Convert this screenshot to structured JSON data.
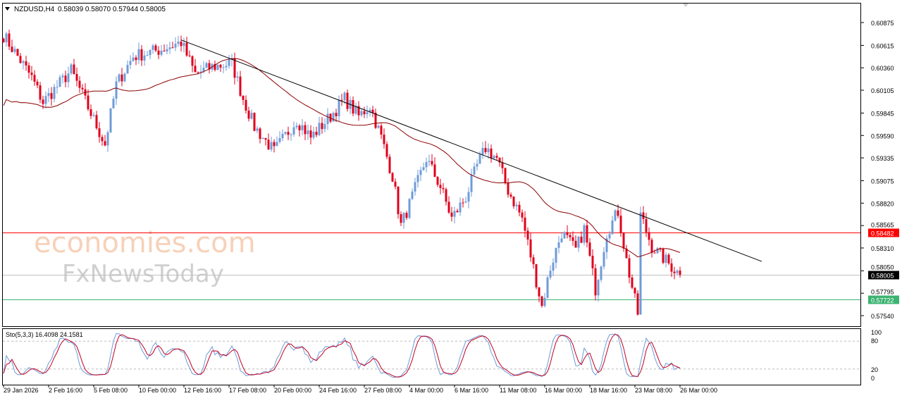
{
  "header": {
    "symbol": "NZDUSD,H4",
    "ohlc": "0.58039 0.58070 0.57944 0.58005"
  },
  "watermark": {
    "line1": "economies.com",
    "line2": "FxNewsToday"
  },
  "chart_data": {
    "type": "candlestick",
    "symbol": "NZDUSD",
    "timeframe": "H4",
    "ylim": [
      0.5754,
      0.60875
    ],
    "y_ticks": [
      "0.60875",
      "0.60615",
      "0.60360",
      "0.60105",
      "0.59845",
      "0.59590",
      "0.59335",
      "0.59075",
      "0.58820",
      "0.58565",
      "0.58310",
      "0.58050",
      "0.57795",
      "0.57540"
    ],
    "x_ticks": [
      "29 Jan 2026",
      "2 Feb 16:00",
      "5 Feb 08:00",
      "10 Feb 00:00",
      "12 Feb 16:00",
      "17 Feb 08:00",
      "20 Feb 00:00",
      "24 Feb 16:00",
      "27 Feb 08:00",
      "4 Mar 00:00",
      "6 Mar 16:00",
      "11 Mar 08:00",
      "16 Mar 00:00",
      "18 Mar 16:00",
      "23 Mar 08:00",
      "26 Mar 00:00"
    ],
    "price_path": [
      {
        "bar": 0,
        "close": 0.60731
      },
      {
        "bar": 10,
        "close": 0.6025
      },
      {
        "bar": 14,
        "close": 0.59969
      },
      {
        "bar": 24,
        "close": 0.6033
      },
      {
        "bar": 36,
        "close": 0.59488
      },
      {
        "bar": 40,
        "close": 0.6017
      },
      {
        "bar": 46,
        "close": 0.6049
      },
      {
        "bar": 56,
        "close": 0.6057
      },
      {
        "bar": 63,
        "close": 0.60651
      },
      {
        "bar": 68,
        "close": 0.6029
      },
      {
        "bar": 74,
        "close": 0.6037
      },
      {
        "bar": 81,
        "close": 0.6041
      },
      {
        "bar": 85,
        "close": 0.60009
      },
      {
        "bar": 89,
        "close": 0.59688
      },
      {
        "bar": 96,
        "close": 0.59408
      },
      {
        "bar": 104,
        "close": 0.59769
      },
      {
        "bar": 109,
        "close": 0.59568
      },
      {
        "bar": 116,
        "close": 0.59809
      },
      {
        "bar": 121,
        "close": 0.60009
      },
      {
        "bar": 126,
        "close": 0.59809
      },
      {
        "bar": 130,
        "close": 0.59929
      },
      {
        "bar": 134,
        "close": 0.59568
      },
      {
        "bar": 138,
        "close": 0.59127
      },
      {
        "bar": 141,
        "close": 0.58566
      },
      {
        "bar": 144,
        "close": 0.58807
      },
      {
        "bar": 150,
        "close": 0.59328
      },
      {
        "bar": 155,
        "close": 0.59007
      },
      {
        "bar": 159,
        "close": 0.58646
      },
      {
        "bar": 164,
        "close": 0.58887
      },
      {
        "bar": 168,
        "close": 0.59247
      },
      {
        "bar": 171,
        "close": 0.59448
      },
      {
        "bar": 175,
        "close": 0.59328
      },
      {
        "bar": 179,
        "close": 0.58967
      },
      {
        "bar": 184,
        "close": 0.58646
      },
      {
        "bar": 188,
        "close": 0.58085
      },
      {
        "bar": 191,
        "close": 0.57644
      },
      {
        "bar": 194,
        "close": 0.58085
      },
      {
        "bar": 198,
        "close": 0.58486
      },
      {
        "bar": 203,
        "close": 0.58285
      },
      {
        "bar": 206,
        "close": 0.58526
      },
      {
        "bar": 210,
        "close": 0.57845
      },
      {
        "bar": 214,
        "close": 0.58486
      },
      {
        "bar": 218,
        "close": 0.58726
      },
      {
        "bar": 221,
        "close": 0.58165
      },
      {
        "bar": 225,
        "close": 0.57564
      },
      {
        "bar": 226,
        "close": 0.58686
      },
      {
        "bar": 230,
        "close": 0.58326
      },
      {
        "bar": 235,
        "close": 0.58165
      },
      {
        "bar": 240,
        "close": 0.58005
      }
    ],
    "trendline": {
      "from": {
        "bar": 63,
        "price": 0.60677
      },
      "to": {
        "bar": 269,
        "price": 0.58157
      },
      "color": "#000000"
    },
    "horizontal_lines": [
      {
        "price": "0.58482",
        "color": "#ff0000"
      },
      {
        "price": "0.58005",
        "color": "#c0c0c0",
        "label_bg": "#000000"
      },
      {
        "price": "0.57722",
        "color": "#3cb371"
      }
    ],
    "moving_average": {
      "color": "#8b0000"
    },
    "colors": {
      "bull": "#6f9bd8",
      "bear": "#e0001b"
    },
    "stochastic": {
      "label": "Sto(5,3,3) 16.4098 24.1581",
      "levels": [
        "100",
        "80",
        "20",
        "0"
      ],
      "main_color": "#6f9bd8",
      "signal_color": "#c00020",
      "ylim": [
        0,
        100
      ]
    }
  }
}
